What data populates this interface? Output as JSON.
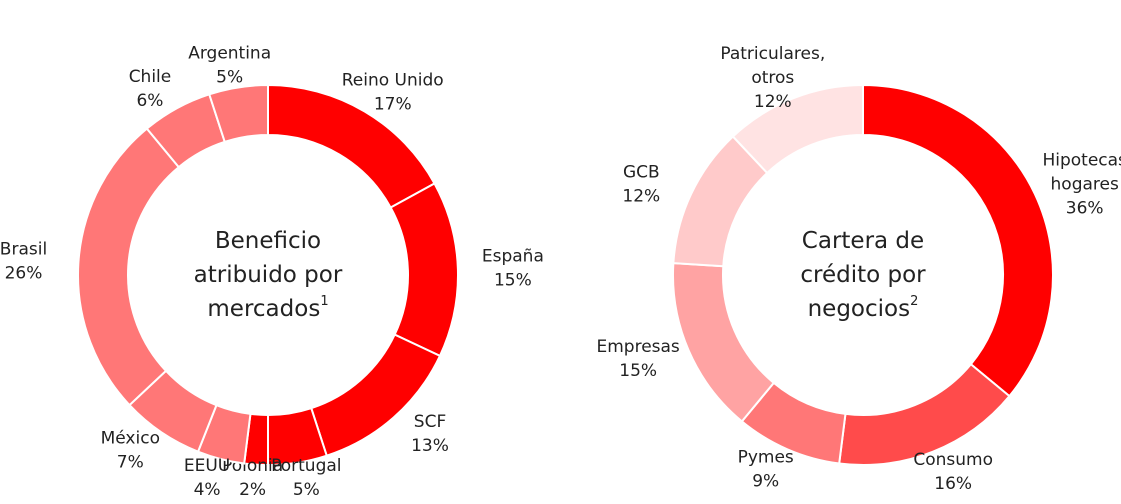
{
  "chart_data": [
    {
      "type": "donut",
      "title": [
        "Beneficio",
        "atribuido por",
        "mercados"
      ],
      "title_superscript": "1",
      "categories": [
        [
          "Reino Unido"
        ],
        [
          "España"
        ],
        [
          "SCF"
        ],
        [
          "Portugal"
        ],
        [
          "Polonia"
        ],
        [
          "EEUU"
        ],
        [
          "México"
        ],
        [
          "Brasil"
        ],
        [
          "Chile"
        ],
        [
          "Argentina"
        ]
      ],
      "values": [
        17,
        15,
        13,
        5,
        2,
        4,
        7,
        26,
        6,
        5
      ],
      "value_labels": [
        "17%",
        "15%",
        "13%",
        "5%",
        "2%",
        "4%",
        "7%",
        "26%",
        "6%",
        "5%"
      ],
      "colors": [
        "#ff0000",
        "#ff0000",
        "#ff0000",
        "#ff0000",
        "#ff0000",
        "#ff7777",
        "#ff7777",
        "#ff7777",
        "#ff7777",
        "#ff7777"
      ]
    },
    {
      "type": "donut",
      "title": [
        "Cartera de",
        "crédito por",
        "negocios"
      ],
      "title_superscript": "2",
      "categories": [
        [
          "Hipotecas",
          "hogares"
        ],
        [
          "Consumo"
        ],
        [
          "Pymes"
        ],
        [
          "Empresas"
        ],
        [
          "GCB"
        ],
        [
          "Patriculares,",
          "otros"
        ]
      ],
      "values": [
        36,
        16,
        9,
        15,
        12,
        12
      ],
      "value_labels": [
        "36%",
        "16%",
        "9%",
        "15%",
        "12%",
        "12%"
      ],
      "colors": [
        "#ff0000",
        "#ff4b4b",
        "#ff7777",
        "#ffa3a3",
        "#ffcaca",
        "#ffe3e3"
      ]
    }
  ]
}
